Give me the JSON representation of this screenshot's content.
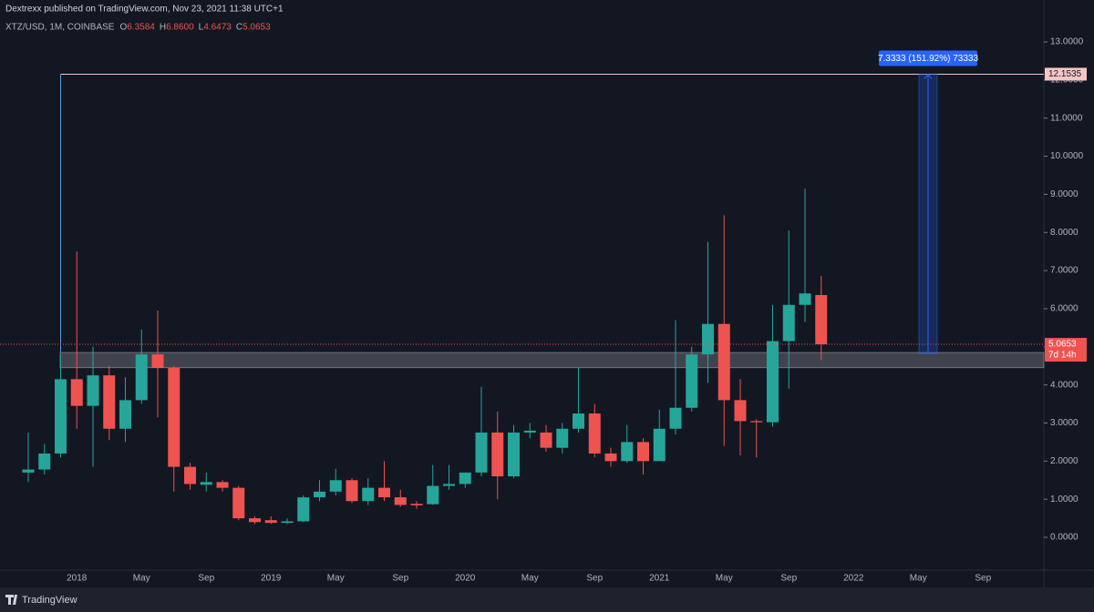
{
  "header": {
    "publisher": "Dextrexx published on TradingView.com, Nov 23, 2021 11:38 UTC+1",
    "brand": "TradingView"
  },
  "chart_data": {
    "type": "candlestick",
    "title": "XTZ/USD, 1M, COINBASE",
    "ohlc_legend": [
      {
        "key": "O",
        "text": "6.3584"
      },
      {
        "key": "H",
        "text": "6.8600"
      },
      {
        "key": "L",
        "text": "4.6473"
      },
      {
        "key": "C",
        "text": "5.0653"
      }
    ],
    "categories": [
      null,
      null,
      null,
      "2018",
      null,
      null,
      null,
      "May",
      null,
      null,
      null,
      "Sep",
      null,
      null,
      null,
      "2019",
      null,
      null,
      null,
      "May",
      null,
      null,
      null,
      "Sep",
      null,
      null,
      null,
      "2020",
      null,
      null,
      null,
      "May",
      null,
      null,
      null,
      "Sep",
      null,
      null,
      null,
      "2021",
      null,
      null,
      null,
      "May",
      null,
      null,
      null,
      "Sep",
      null,
      null,
      null,
      "2022",
      null,
      null,
      null,
      "May",
      null,
      null,
      null,
      "Sep",
      null,
      null,
      null
    ],
    "open": [
      1.7,
      1.78,
      2.2,
      4.15,
      3.45,
      4.25,
      2.85,
      3.6,
      4.8,
      4.45,
      1.85,
      1.38,
      1.45,
      1.3,
      0.5,
      0.45,
      0.38,
      0.42,
      1.05,
      1.2,
      1.5,
      0.95,
      1.3,
      1.05,
      0.88,
      0.87,
      1.35,
      1.4,
      1.7,
      2.75,
      1.6,
      2.75,
      2.75,
      2.35,
      2.85,
      3.25,
      2.2,
      2.0,
      2.5,
      2.0,
      2.85,
      3.4,
      4.8,
      5.6,
      3.6,
      3.05,
      3.02,
      5.15,
      6.1,
      6.3584,
      null,
      null,
      null,
      null,
      null,
      null,
      null,
      null,
      null,
      null,
      null,
      null,
      null
    ],
    "high": [
      2.75,
      2.45,
      4.8,
      7.5,
      5.0,
      4.5,
      4.2,
      5.45,
      5.95,
      4.5,
      1.95,
      1.7,
      1.5,
      1.35,
      0.55,
      0.55,
      0.5,
      1.1,
      1.5,
      1.8,
      1.55,
      1.55,
      2.0,
      1.25,
      0.95,
      1.9,
      1.9,
      1.7,
      3.95,
      3.3,
      2.95,
      3.0,
      2.95,
      3.0,
      4.45,
      3.5,
      2.35,
      2.95,
      2.6,
      3.35,
      5.7,
      5.0,
      7.75,
      8.45,
      4.15,
      3.1,
      6.1,
      8.05,
      9.15,
      6.86,
      null,
      null,
      null,
      null,
      null,
      null,
      null,
      null,
      null,
      null,
      null,
      null,
      null
    ],
    "low": [
      1.45,
      1.65,
      2.1,
      2.85,
      1.85,
      2.55,
      2.5,
      3.5,
      3.15,
      1.2,
      1.25,
      1.2,
      1.2,
      0.45,
      0.35,
      0.35,
      0.35,
      0.4,
      0.95,
      1.1,
      0.9,
      0.85,
      0.95,
      0.8,
      0.75,
      0.85,
      1.25,
      1.3,
      1.6,
      1.0,
      1.55,
      2.6,
      2.25,
      2.2,
      2.75,
      2.1,
      1.85,
      1.95,
      1.65,
      2.0,
      2.7,
      3.3,
      4.05,
      2.4,
      2.15,
      2.1,
      2.9,
      3.9,
      5.65,
      4.6473,
      null,
      null,
      null,
      null,
      null,
      null,
      null,
      null,
      null,
      null,
      null,
      null,
      null
    ],
    "close": [
      1.78,
      2.2,
      4.15,
      3.45,
      4.25,
      2.85,
      3.6,
      4.8,
      4.45,
      1.85,
      1.4,
      1.45,
      1.3,
      0.5,
      0.4,
      0.38,
      0.42,
      1.05,
      1.2,
      1.5,
      0.95,
      1.3,
      1.05,
      0.85,
      0.84,
      1.35,
      1.4,
      1.7,
      2.75,
      1.6,
      2.75,
      2.8,
      2.35,
      2.85,
      3.25,
      2.2,
      2.0,
      2.5,
      2.0,
      2.85,
      3.4,
      4.8,
      5.6,
      3.6,
      3.05,
      3.02,
      5.15,
      6.1,
      6.4,
      5.0653,
      null,
      null,
      null,
      null,
      null,
      null,
      null,
      null,
      null,
      null,
      null,
      null,
      null
    ],
    "up_color": "#26a69a",
    "down_color": "#ef5350",
    "ylim": [
      -0.86,
      14.1
    ],
    "yticks": [
      {
        "value": 0,
        "label": "0.0000"
      },
      {
        "value": 1,
        "label": "1.0000"
      },
      {
        "value": 2,
        "label": "2.0000"
      },
      {
        "value": 3,
        "label": "3.0000"
      },
      {
        "value": 4,
        "label": "4.0000"
      },
      {
        "value": 5,
        "label": "5.0000"
      },
      {
        "value": 6,
        "label": "6.0000"
      },
      {
        "value": 7,
        "label": "7.0000"
      },
      {
        "value": 8,
        "label": "8.0000"
      },
      {
        "value": 9,
        "label": "9.0000"
      },
      {
        "value": 10,
        "label": "10.0000"
      },
      {
        "value": 11,
        "label": "11.0000"
      },
      {
        "value": 12,
        "label": "12.0000"
      },
      {
        "value": 13,
        "label": "13.0000"
      }
    ],
    "level": 12.1535,
    "zone": [
      4.45,
      4.85
    ],
    "countdown": "7d 14h",
    "measure": {
      "label": "7.3333 (151.92%) 73333",
      "from": 4.82,
      "to": 12.1535
    }
  }
}
